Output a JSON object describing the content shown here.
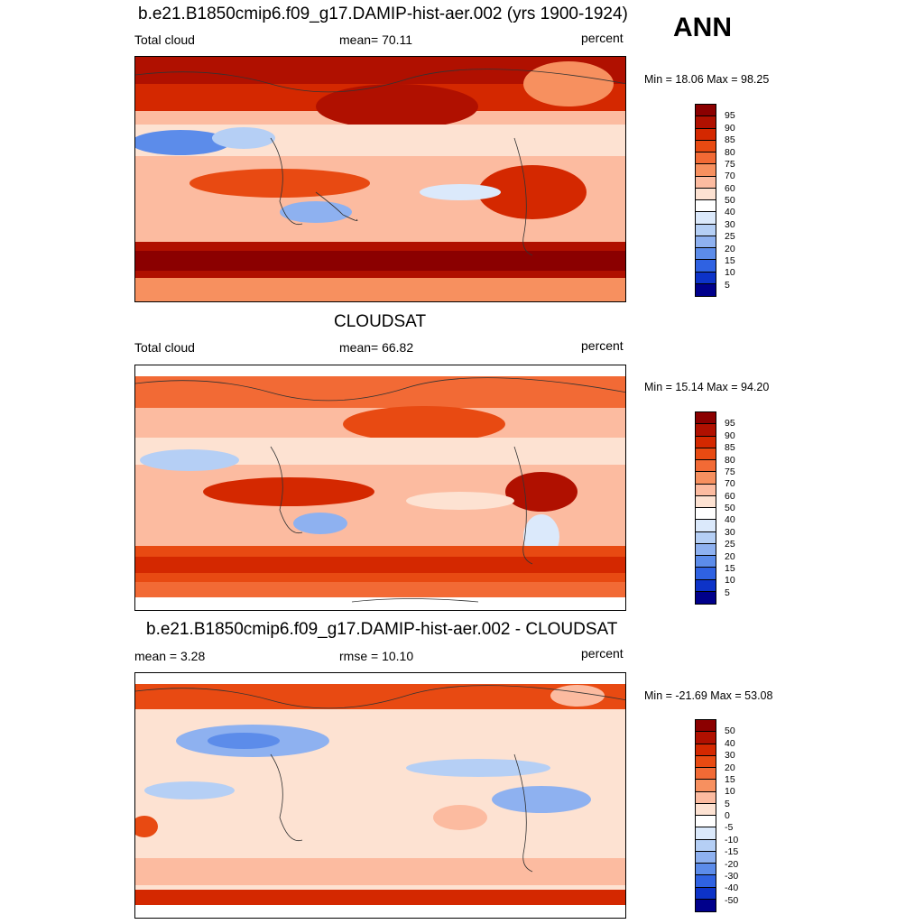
{
  "season": "ANN",
  "panels": [
    {
      "title": "b.e21.B1850cmip6.f09_g17.DAMIP-hist-aer.002 (yrs 1900-1924)",
      "left_label": "Total cloud",
      "center_label": "mean=  70.11",
      "units": "percent",
      "minmax": "Min =  18.06 Max =  98.25",
      "colorbar_labels": [
        "95",
        "90",
        "85",
        "80",
        "75",
        "70",
        "60",
        "50",
        "40",
        "30",
        "25",
        "20",
        "15",
        "10",
        "5"
      ]
    },
    {
      "title": "CLOUDSAT",
      "left_label": "Total cloud",
      "center_label": "mean=  66.82",
      "units": "percent",
      "minmax": "Min =  15.14 Max =  94.20",
      "colorbar_labels": [
        "95",
        "90",
        "85",
        "80",
        "75",
        "70",
        "60",
        "50",
        "40",
        "30",
        "25",
        "20",
        "15",
        "10",
        "5"
      ]
    },
    {
      "title": "b.e21.B1850cmip6.f09_g17.DAMIP-hist-aer.002 - CLOUDSAT",
      "left_label": "mean =   3.28",
      "center_label": "rmse =  10.10",
      "units": "percent",
      "minmax": "Min = -21.69 Max =  53.08",
      "colorbar_labels": [
        "50",
        "40",
        "30",
        "20",
        "15",
        "10",
        "5",
        "0",
        "-5",
        "-10",
        "-15",
        "-20",
        "-30",
        "-40",
        "-50"
      ]
    }
  ],
  "colors": {
    "scale": [
      "#8b0000",
      "#b01000",
      "#d42800",
      "#e84a12",
      "#f26a35",
      "#f7905f",
      "#fcbba0",
      "#fde2d2",
      "#ffffff",
      "#dbe9fb",
      "#b5cff5",
      "#8eb1f0",
      "#5c8cea",
      "#2f62e2",
      "#0d33c8",
      "#00008b"
    ]
  }
}
